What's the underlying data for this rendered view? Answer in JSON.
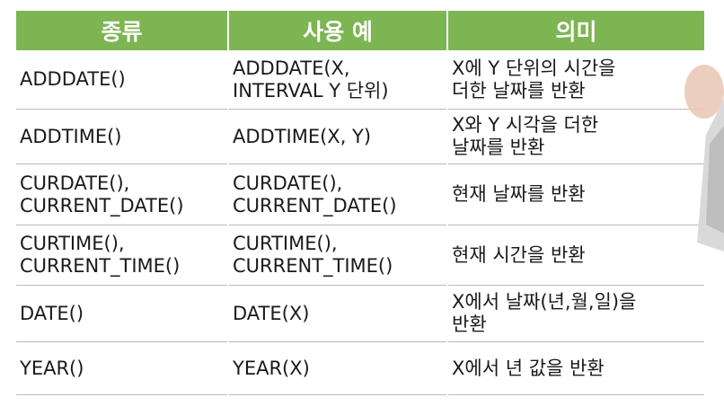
{
  "header": {
    "col_type": "종류",
    "col_example": "사용 예",
    "col_meaning": "의미"
  },
  "rows": [
    {
      "type": "ADDDATE()",
      "example": "ADDDATE(X,\nINTERVAL Y 단위)",
      "meaning": "X에 Y 단위의 시간을\n더한 날짜를 반환"
    },
    {
      "type": "ADDTIME()",
      "example": "ADDTIME(X, Y)",
      "meaning": "X와 Y 시각을 더한\n날짜를 반환"
    },
    {
      "type": "CURDATE(),\nCURRENT_DATE()",
      "example": "CURDATE(),\nCURRENT_DATE()",
      "meaning": "현재 날짜를 반환"
    },
    {
      "type": "CURTIME(),\nCURRENT_TIME()",
      "example": "CURTIME(),\nCURRENT_TIME()",
      "meaning": "현재 시간을 반환"
    },
    {
      "type": "DATE()",
      "example": "DATE(X)",
      "meaning": "X에서 날짜(년,월,일)을\n반환"
    },
    {
      "type": "YEAR()",
      "example": "YEAR(X)",
      "meaning": "X에서 년 값을 반환"
    }
  ],
  "colors": {
    "header_bg": "#7db553",
    "header_text": "#ffffff",
    "row_divider": "#b9b9b9"
  }
}
